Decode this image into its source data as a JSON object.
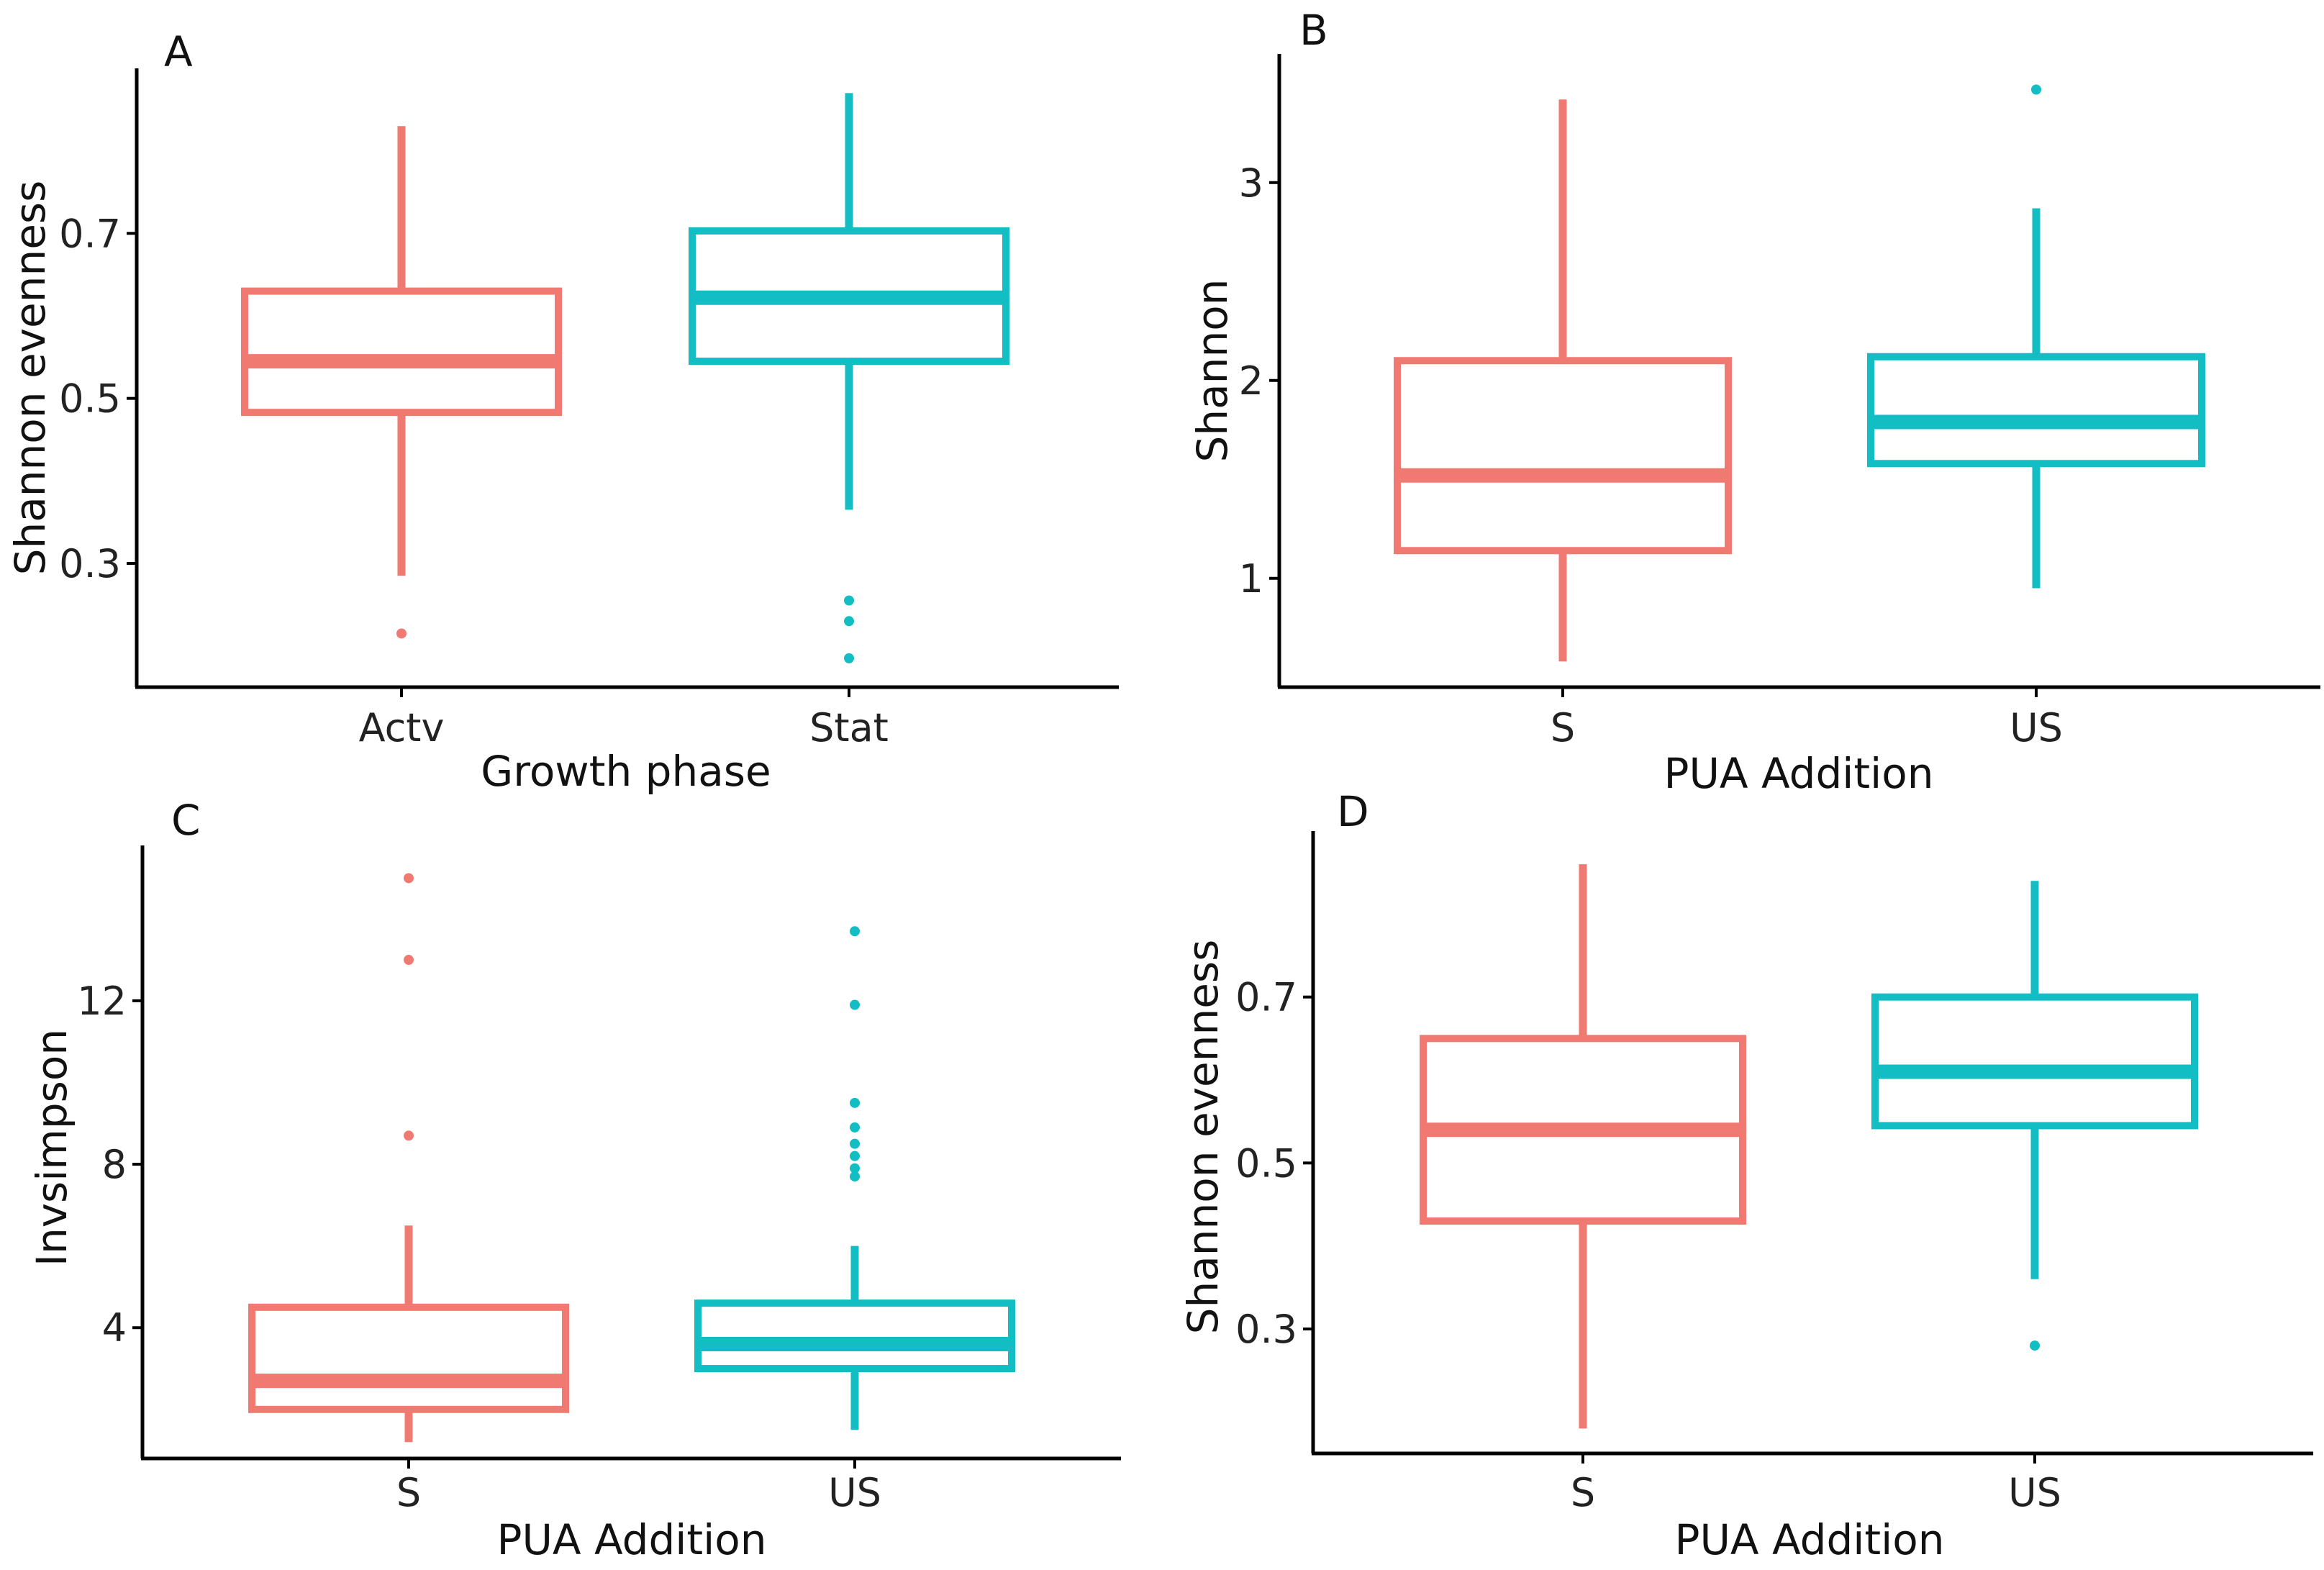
{
  "colors": {
    "salmon": "#F07A72",
    "teal": "#13BDC4"
  },
  "chart_data": [
    {
      "type": "boxplot",
      "panel": "A",
      "xlabel": "Growth phase",
      "ylabel": "Shannon evenness",
      "categories": [
        "Actv",
        "Stat"
      ],
      "ylim": [
        0.15,
        0.9
      ],
      "yticks": [
        0.3,
        0.5,
        0.7
      ],
      "ytick_labels": [
        "0.3",
        "0.5",
        "0.7"
      ],
      "boxes": [
        {
          "category": "Actv",
          "color": "salmon",
          "whisker_low": 0.285,
          "q1": 0.483,
          "median": 0.545,
          "q3": 0.63,
          "whisker_high": 0.83,
          "outliers": [
            0.215
          ]
        },
        {
          "category": "Stat",
          "color": "teal",
          "whisker_low": 0.365,
          "q1": 0.545,
          "median": 0.622,
          "q3": 0.703,
          "whisker_high": 0.87,
          "outliers": [
            0.255,
            0.23,
            0.185
          ]
        }
      ]
    },
    {
      "type": "boxplot",
      "panel": "B",
      "xlabel": "PUA Addition",
      "ylabel": "Shannon",
      "categories": [
        "S",
        "US"
      ],
      "ylim": [
        0.45,
        3.65
      ],
      "yticks": [
        1,
        2,
        3
      ],
      "ytick_labels": [
        "1",
        "2",
        "3"
      ],
      "boxes": [
        {
          "category": "S",
          "color": "salmon",
          "whisker_low": 0.58,
          "q1": 1.14,
          "median": 1.52,
          "q3": 2.1,
          "whisker_high": 3.42,
          "outliers": []
        },
        {
          "category": "US",
          "color": "teal",
          "whisker_low": 0.95,
          "q1": 1.58,
          "median": 1.79,
          "q3": 2.12,
          "whisker_high": 2.87,
          "outliers": [
            3.47
          ]
        }
      ]
    },
    {
      "type": "boxplot",
      "panel": "C",
      "xlabel": "PUA Addition",
      "ylabel": "Invsimpson",
      "categories": [
        "S",
        "US"
      ],
      "ylim": [
        0.8,
        15.8
      ],
      "yticks": [
        4,
        8,
        12
      ],
      "ytick_labels": [
        "4",
        "8",
        "12"
      ],
      "boxes": [
        {
          "category": "S",
          "color": "salmon",
          "whisker_low": 1.2,
          "q1": 2.0,
          "median": 2.7,
          "q3": 4.5,
          "whisker_high": 6.5,
          "outliers": [
            8.7,
            13.0,
            15.0
          ]
        },
        {
          "category": "US",
          "color": "teal",
          "whisker_low": 1.5,
          "q1": 3.0,
          "median": 3.6,
          "q3": 4.6,
          "whisker_high": 6.0,
          "outliers": [
            7.7,
            7.9,
            8.2,
            8.5,
            8.9,
            9.5,
            11.9,
            13.7
          ]
        }
      ]
    },
    {
      "type": "boxplot",
      "panel": "D",
      "xlabel": "PUA Addition",
      "ylabel": "Shannon evenness",
      "categories": [
        "S",
        "US"
      ],
      "ylim": [
        0.15,
        0.9
      ],
      "yticks": [
        0.3,
        0.5,
        0.7
      ],
      "ytick_labels": [
        "0.3",
        "0.5",
        "0.7"
      ],
      "boxes": [
        {
          "category": "S",
          "color": "salmon",
          "whisker_low": 0.18,
          "q1": 0.43,
          "median": 0.54,
          "q3": 0.65,
          "whisker_high": 0.86,
          "outliers": []
        },
        {
          "category": "US",
          "color": "teal",
          "whisker_low": 0.36,
          "q1": 0.545,
          "median": 0.61,
          "q3": 0.7,
          "whisker_high": 0.84,
          "outliers": [
            0.28
          ]
        }
      ]
    }
  ]
}
